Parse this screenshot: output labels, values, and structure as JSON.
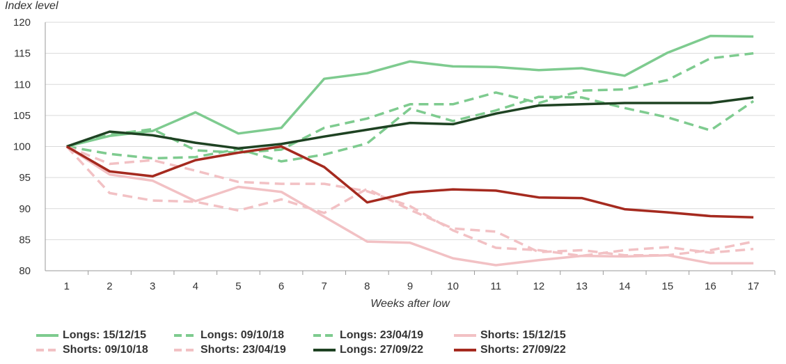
{
  "chart_data": {
    "type": "line",
    "ylabel": "Index level",
    "xlabel": "Weeks after low",
    "x": [
      1,
      2,
      3,
      4,
      5,
      6,
      7,
      8,
      9,
      10,
      11,
      12,
      13,
      14,
      15,
      16,
      17
    ],
    "ylim": [
      80,
      120
    ],
    "yticks": [
      80,
      85,
      90,
      95,
      100,
      105,
      110,
      115,
      120
    ],
    "grid": "horizontal",
    "legend_position": "bottom",
    "series": [
      {
        "name": "Longs: 15/12/15",
        "color": "#7ecb8f",
        "dash": "solid",
        "values": [
          100,
          101.7,
          102.5,
          105.5,
          102.1,
          103.0,
          110.9,
          111.8,
          113.7,
          112.9,
          112.8,
          112.3,
          112.6,
          111.4,
          115.1,
          117.8,
          117.7
        ]
      },
      {
        "name": "Longs: 09/10/18",
        "color": "#7ecb8f",
        "dash": "dashed",
        "values": [
          100,
          101.9,
          102.8,
          99.4,
          99.0,
          99.5,
          103.0,
          104.5,
          106.8,
          106.8,
          108.7,
          107.0,
          109.0,
          109.2,
          110.7,
          114.2,
          115.0
        ]
      },
      {
        "name": "Longs: 23/04/19",
        "color": "#7ecb8f",
        "dash": "dashed",
        "values": [
          100,
          98.8,
          98.1,
          98.3,
          99.6,
          97.6,
          98.7,
          100.5,
          106.1,
          104.1,
          105.8,
          108.0,
          107.9,
          106.2,
          104.7,
          102.6,
          107.3
        ]
      },
      {
        "name": "Shorts: 15/12/15",
        "color": "#f2c1c4",
        "dash": "solid",
        "values": [
          100,
          95.5,
          94.5,
          91.2,
          93.5,
          92.7,
          88.7,
          84.7,
          84.5,
          82.0,
          80.9,
          81.7,
          82.4,
          82.3,
          82.5,
          81.2,
          81.2
        ]
      },
      {
        "name": "Shorts: 09/10/18",
        "color": "#f2c1c4",
        "dash": "dashed",
        "values": [
          100,
          92.5,
          91.3,
          91.1,
          89.7,
          91.5,
          89.3,
          93.2,
          89.8,
          86.8,
          86.3,
          83.0,
          83.3,
          82.5,
          82.5,
          83.3,
          84.7
        ]
      },
      {
        "name": "Shorts: 23/04/19",
        "color": "#f2c1c4",
        "dash": "dashed",
        "values": [
          100,
          97.2,
          97.8,
          96.1,
          94.3,
          94.0,
          94.0,
          92.8,
          90.4,
          86.5,
          83.7,
          83.3,
          82.4,
          83.3,
          83.8,
          82.9,
          83.5
        ]
      },
      {
        "name": "Longs: 27/09/22",
        "color": "#1e4222",
        "dash": "solid",
        "values": [
          100,
          102.4,
          101.8,
          100.6,
          99.7,
          100.4,
          101.6,
          102.7,
          103.8,
          103.6,
          105.3,
          106.6,
          106.8,
          107.0,
          107.0,
          107.0,
          107.9
        ]
      },
      {
        "name": "Shorts: 27/09/22",
        "color": "#a52a1f",
        "dash": "solid",
        "values": [
          100,
          96.0,
          95.2,
          97.8,
          99.0,
          100.0,
          96.7,
          91.0,
          92.6,
          93.1,
          92.9,
          91.8,
          91.7,
          89.9,
          89.4,
          88.8,
          88.6
        ]
      }
    ]
  }
}
